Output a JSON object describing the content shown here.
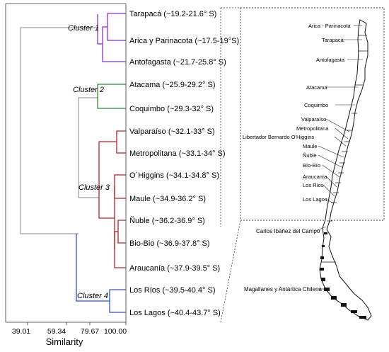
{
  "dendrogram": {
    "leaves": [
      "Tarapacá (~19.2-21.6° S)",
      "Arica y Parinacota (~17.5-19°S)",
      "Antofagasta (~21.7-25.8° S)",
      "Atacama (~25.9-29.2° S)",
      "Coquimbo (~29.3-32° S)",
      "Valparaíso (~32.1-33° S)",
      "Metropolitana (~33.1-34° S)",
      "O´Higgins (~34.1-34.8° S)",
      "Maule (~34.9-36.2° S)",
      "Ñuble (~36.2-36.9° S)",
      "Bio-Bio (~36.9-37.8° S)",
      "Araucanía (~37.9-39.5° S)",
      "Los Ríos (~39.5-40.4° S)",
      "Los Lagos (~40.4-43.7° S)"
    ],
    "clusters": [
      "Cluster 1",
      "Cluster 2",
      "Cluster 3",
      "Cluster 4"
    ],
    "cluster_colors": [
      "#8e2ed0",
      "#2e8b2e",
      "#b02428",
      "#2a52c9"
    ],
    "link_color": "#8a8a8a",
    "xaxis": {
      "title": "Similarity",
      "ticks": [
        "39.01",
        "59.34",
        "79.67",
        "100.00"
      ]
    }
  },
  "map": {
    "region_labels": [
      "Arica - Parinacota",
      "Tarapacá",
      "Antofagasta",
      "Atacama",
      "Coquimbo",
      "Valparaíso",
      "Metropolitana",
      "Libertador Bernardo O'Higgins",
      "Maule",
      "Ñuble",
      "Bío-Bío",
      "Araucanía",
      "Los Ríos",
      "Los Lagos"
    ],
    "south_labels": [
      "Carlos Ibáñez del Campo",
      "Magallanes y Antártica Chilena"
    ]
  }
}
